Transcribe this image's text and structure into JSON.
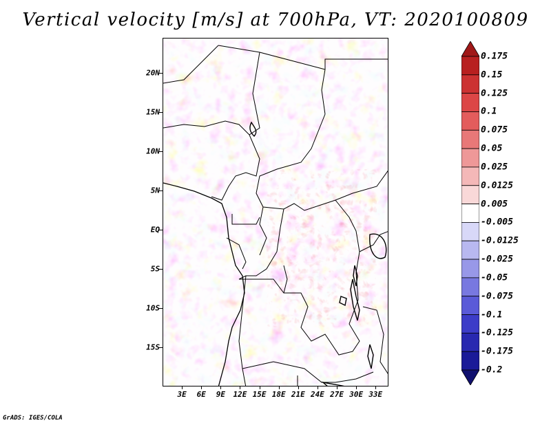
{
  "title": "Vertical velocity [m/s] at 700hPa, VT: 2020100809",
  "credit": "GrADS: IGES/COLA",
  "map": {
    "variable": "Vertical velocity",
    "units": "m/s",
    "level": "700hPa",
    "lat_range": [
      -20,
      24.5
    ],
    "lon_range": [
      0,
      35
    ],
    "lat_ticks": [
      {
        "value": 20,
        "label": "20N"
      },
      {
        "value": 15,
        "label": "15N"
      },
      {
        "value": 10,
        "label": "10N"
      },
      {
        "value": 5,
        "label": "5N"
      },
      {
        "value": 0,
        "label": "EQ"
      },
      {
        "value": -5,
        "label": "5S"
      },
      {
        "value": -10,
        "label": "10S"
      },
      {
        "value": -15,
        "label": "15S"
      }
    ],
    "lon_ticks": [
      {
        "value": 3,
        "label": "3E"
      },
      {
        "value": 6,
        "label": "6E"
      },
      {
        "value": 9,
        "label": "9E"
      },
      {
        "value": 12,
        "label": "12E"
      },
      {
        "value": 15,
        "label": "15E"
      },
      {
        "value": 18,
        "label": "18E"
      },
      {
        "value": 21,
        "label": "21E"
      },
      {
        "value": 24,
        "label": "24E"
      },
      {
        "value": 27,
        "label": "27E"
      },
      {
        "value": 30,
        "label": "30E"
      },
      {
        "value": 33,
        "label": "33E"
      }
    ]
  },
  "colorbar": {
    "levels": [
      "0.175",
      "0.15",
      "0.125",
      "0.1",
      "0.075",
      "0.05",
      "0.025",
      "0.0125",
      "0.005",
      "-0.005",
      "-0.0125",
      "-0.025",
      "-0.05",
      "-0.075",
      "-0.1",
      "-0.125",
      "-0.175",
      "-0.2"
    ],
    "colors": [
      "#a01818",
      "#b82020",
      "#cc3232",
      "#dc4646",
      "#e35c5c",
      "#e87878",
      "#ee9898",
      "#f4b8b8",
      "#f9d8d8",
      "#ffffff",
      "#d8d8f8",
      "#b8b8f0",
      "#9898e8",
      "#7878e0",
      "#5a5ad8",
      "#3c3cc8",
      "#2828b0",
      "#1a1a98",
      "#10106e"
    ]
  }
}
